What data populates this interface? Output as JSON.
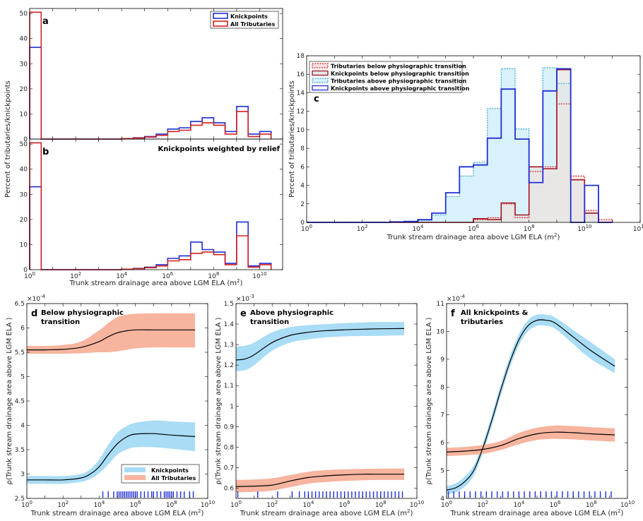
{
  "colors": {
    "blue": "#1f2fd6",
    "red": "#d42020",
    "darkred": "#a0141e",
    "lightblue": "#3aa6d8",
    "bluefill": "#d8f1fb",
    "redfill": "#fbe2e2",
    "greyfill": "#e6e6e6",
    "band_blue": "#a9dcf5",
    "band_orange": "#f7b49e"
  },
  "chart_data": [
    {
      "panel": "a",
      "type": "histogram",
      "xscale": "log",
      "xlim_exp": [
        0,
        11
      ],
      "ylim": [
        0,
        52
      ],
      "yticks": [
        0,
        10,
        20,
        30,
        40,
        50
      ],
      "bin_edges_exp": [
        0,
        0.5,
        1,
        1.5,
        2,
        2.5,
        3,
        3.5,
        4,
        4.5,
        5,
        5.5,
        6,
        6.5,
        7,
        7.5,
        8,
        8.5,
        9,
        9.5,
        10,
        10.5
      ],
      "series": [
        {
          "name": "Knickpoints",
          "values": [
            36.5,
            0,
            0,
            0,
            0,
            0,
            0,
            0,
            0.2,
            0.5,
            1,
            2,
            4,
            4.5,
            7,
            8.5,
            6.5,
            3,
            13,
            2,
            3
          ]
        },
        {
          "name": "All Tributaries",
          "values": [
            50.5,
            0,
            0,
            0,
            0,
            0,
            0,
            0,
            0.2,
            0.4,
            0.8,
            1.5,
            3,
            3.5,
            5.5,
            6.5,
            5.5,
            2,
            11,
            1,
            2
          ]
        }
      ]
    },
    {
      "panel": "b",
      "type": "histogram",
      "annotation": "Knickpoints weighted by relief",
      "xscale": "log",
      "xlim_exp": [
        0,
        11
      ],
      "ylim": [
        0,
        52
      ],
      "yticks": [
        0,
        10,
        20,
        30,
        40,
        50
      ],
      "xlabel": "Trunk stream drainage area above LGM ELA (m",
      "xlabel_sup": "2",
      "bin_edges_exp": [
        0,
        0.5,
        1,
        1.5,
        2,
        2.5,
        3,
        3.5,
        4,
        4.5,
        5,
        5.5,
        6,
        6.5,
        7,
        7.5,
        8,
        8.5,
        9,
        9.5,
        10,
        10.5
      ],
      "series": [
        {
          "name": "Knickpoints",
          "values": [
            33,
            0,
            0,
            0,
            0,
            0,
            0,
            0,
            0.2,
            0.5,
            1,
            2,
            4.5,
            5.5,
            11,
            8,
            7,
            2.5,
            19,
            1.5,
            2.5
          ]
        },
        {
          "name": "All Tributaries",
          "values": [
            50.5,
            0,
            0,
            0,
            0,
            0,
            0,
            0,
            0.2,
            0.4,
            0.8,
            1.5,
            3.5,
            4,
            6.5,
            7,
            6,
            2,
            13.5,
            1,
            2
          ]
        }
      ]
    },
    {
      "panel": "c",
      "type": "histogram",
      "xscale": "log",
      "xlim_exp": [
        0,
        12
      ],
      "ylim": [
        0,
        18
      ],
      "yticks": [
        0,
        2,
        4,
        6,
        8,
        10,
        12,
        14,
        16,
        18
      ],
      "xlabel": "Trunk stream drainage area above LGM ELA (m",
      "xlabel_sup": "2",
      "bin_edges_exp": [
        0,
        0.5,
        1,
        1.5,
        2,
        2.5,
        3,
        3.5,
        4,
        4.5,
        5,
        5.5,
        6,
        6.5,
        7,
        7.5,
        8,
        8.5,
        9,
        9.5,
        10,
        10.5,
        11
      ],
      "series": [
        {
          "name": "Tributaries below physiographic transition",
          "values": [
            0,
            0,
            0,
            0,
            0,
            0,
            0,
            0,
            0,
            0,
            0,
            0,
            0.3,
            0.5,
            2,
            0.5,
            5.5,
            6,
            12.8,
            5,
            1.3,
            0.3
          ]
        },
        {
          "name": "Knickpoints below physiographic transition",
          "values": [
            0,
            0,
            0,
            0,
            0,
            0,
            0,
            0,
            0,
            0,
            0,
            0,
            0.4,
            0.3,
            2.1,
            0.8,
            6,
            5.8,
            16.5,
            4.6,
            1,
            0
          ]
        },
        {
          "name": "Tributaries above  physiographic transition",
          "values": [
            0,
            0,
            0,
            0,
            0,
            0,
            0.05,
            0.1,
            0.2,
            0.8,
            2.8,
            5,
            6.5,
            12.3,
            16.6,
            10.1,
            6,
            16.7,
            15,
            0,
            0,
            0
          ]
        },
        {
          "name": "Knickpoints above physiographic transition",
          "values": [
            0,
            0,
            0,
            0,
            0,
            0,
            0.05,
            0.1,
            0.3,
            1,
            3.2,
            6,
            6.2,
            9.1,
            14.4,
            9,
            4.3,
            14.2,
            16.6,
            0,
            4,
            0
          ]
        }
      ]
    },
    {
      "panel": "d",
      "type": "line",
      "title_lines": [
        "Below physiographic",
        "transition"
      ],
      "xscale": "log",
      "xlim_exp": [
        0,
        10
      ],
      "ylim": [
        2.5,
        6.5
      ],
      "yticks": [
        2.5,
        3,
        3.5,
        4,
        4.5,
        5,
        5.5,
        6,
        6.5
      ],
      "multiplier": "×10",
      "multiplier_exp": "-4",
      "xlabel": "Trunk stream drainage area above LGM ELA (m",
      "xlabel_sup": "2",
      "ylabel": "ρ(Trunk stream drainage area above LGM ELA )",
      "series": [
        {
          "name": "Knickpoints",
          "x_exp": [
            0,
            1,
            2,
            3,
            3.5,
            4,
            4.5,
            5,
            5.5,
            6,
            7,
            8,
            9.3
          ],
          "mean": [
            2.88,
            2.88,
            2.88,
            2.92,
            3.0,
            3.15,
            3.4,
            3.62,
            3.76,
            3.82,
            3.83,
            3.8,
            3.77
          ],
          "lo": [
            2.8,
            2.8,
            2.8,
            2.84,
            2.9,
            3.02,
            3.2,
            3.4,
            3.5,
            3.55,
            3.55,
            3.52,
            3.47
          ],
          "hi": [
            2.96,
            2.96,
            2.96,
            3.0,
            3.1,
            3.3,
            3.6,
            3.85,
            3.98,
            4.05,
            4.1,
            4.08,
            4.06
          ]
        },
        {
          "name": "All Tributaries",
          "x_exp": [
            0,
            1,
            2,
            3,
            4,
            4.5,
            5,
            5.5,
            6,
            7,
            8,
            9.3
          ],
          "mean": [
            5.55,
            5.55,
            5.56,
            5.6,
            5.72,
            5.82,
            5.9,
            5.94,
            5.96,
            5.96,
            5.96,
            5.96
          ],
          "lo": [
            5.47,
            5.47,
            5.47,
            5.48,
            5.5,
            5.5,
            5.52,
            5.55,
            5.58,
            5.6,
            5.6,
            5.6
          ],
          "hi": [
            5.63,
            5.63,
            5.65,
            5.72,
            5.95,
            6.1,
            6.22,
            6.27,
            6.29,
            6.3,
            6.3,
            6.3
          ]
        }
      ],
      "rug_x_exp": [
        4.2,
        4.5,
        4.8,
        5.0,
        5.1,
        5.2,
        5.3,
        5.4,
        5.5,
        5.6,
        5.7,
        5.8,
        5.9,
        6.0,
        6.1,
        6.3,
        6.5,
        6.7,
        6.9,
        7.0,
        7.2,
        7.4,
        7.6,
        7.7,
        7.8,
        7.9,
        8.0,
        8.1,
        8.3,
        8.5,
        8.7,
        9.0,
        9.2
      ],
      "legend": [
        "Knickpoints",
        "All Tributaries"
      ]
    },
    {
      "panel": "e",
      "type": "line",
      "title_lines": [
        "Above physiographic",
        "transition"
      ],
      "xscale": "log",
      "xlim_exp": [
        0,
        10
      ],
      "ylim": [
        0.55,
        1.5
      ],
      "yticks": [
        0.6,
        0.7,
        0.8,
        0.9,
        1,
        1.1,
        1.2,
        1.3,
        1.4,
        1.5
      ],
      "multiplier": "×10",
      "multiplier_exp": "-3",
      "xlabel": "Trunk stream drainage area above LGM ELA (m",
      "xlabel_sup": "2",
      "ylabel": "ρ(Trunk stream drainage area above LGM ELA )",
      "series": [
        {
          "name": "Knickpoints",
          "x_exp": [
            0,
            0.5,
            1,
            2,
            3,
            4,
            5,
            6,
            7,
            8,
            9.3
          ],
          "mean": [
            1.225,
            1.23,
            1.25,
            1.31,
            1.345,
            1.36,
            1.368,
            1.372,
            1.375,
            1.377,
            1.378
          ],
          "lo": [
            1.17,
            1.175,
            1.2,
            1.27,
            1.31,
            1.325,
            1.335,
            1.34,
            1.342,
            1.343,
            1.345
          ],
          "hi": [
            1.29,
            1.295,
            1.31,
            1.36,
            1.385,
            1.395,
            1.4,
            1.405,
            1.408,
            1.41,
            1.41
          ]
        },
        {
          "name": "All Tributaries",
          "x_exp": [
            0,
            1,
            2,
            3,
            4,
            5,
            6,
            7,
            8,
            9.3
          ],
          "mean": [
            0.608,
            0.61,
            0.615,
            0.635,
            0.652,
            0.66,
            0.665,
            0.668,
            0.668,
            0.668
          ],
          "lo": [
            0.58,
            0.582,
            0.588,
            0.605,
            0.622,
            0.63,
            0.635,
            0.638,
            0.64,
            0.64
          ],
          "hi": [
            0.64,
            0.642,
            0.648,
            0.664,
            0.68,
            0.688,
            0.692,
            0.694,
            0.695,
            0.696
          ]
        }
      ],
      "rug_x_exp": [
        0.1,
        1.2,
        2.3,
        3.1,
        3.5,
        3.8,
        4.0,
        4.2,
        4.4,
        4.6,
        4.8,
        5.0,
        5.2,
        5.4,
        5.6,
        5.8,
        6.0,
        6.2,
        6.4,
        6.6,
        6.8,
        7.0,
        7.2,
        7.4,
        7.6,
        7.8,
        8.0,
        8.2,
        8.4,
        8.6,
        8.8,
        9.0,
        9.2
      ]
    },
    {
      "panel": "f",
      "type": "line",
      "title_lines": [
        "All knickpoints &",
        "tributaries"
      ],
      "xscale": "log",
      "xlim_exp": [
        0,
        10
      ],
      "ylim": [
        4,
        11
      ],
      "yticks": [
        4,
        5,
        6,
        7,
        8,
        9,
        10,
        11
      ],
      "multiplier": "×10",
      "multiplier_exp": "-4",
      "xlabel": "Trunk stream drainage area above LGM ELA (m",
      "xlabel_sup": "2",
      "ylabel": "ρ(Trunk stream drainage area above LGM ELA )",
      "series": [
        {
          "name": "Knickpoints",
          "x_exp": [
            0,
            0.5,
            1,
            1.5,
            2,
            2.5,
            3,
            3.5,
            4,
            4.5,
            5,
            5.5,
            6,
            7,
            8,
            9.3
          ],
          "mean": [
            4.3,
            4.38,
            4.6,
            5.0,
            5.8,
            6.8,
            7.9,
            8.9,
            9.7,
            10.2,
            10.4,
            10.4,
            10.3,
            9.8,
            9.3,
            8.75
          ],
          "lo": [
            4.15,
            4.22,
            4.42,
            4.82,
            5.62,
            6.6,
            7.7,
            8.7,
            9.5,
            10.0,
            10.2,
            10.2,
            10.1,
            9.55,
            9.0,
            8.5
          ],
          "hi": [
            4.45,
            4.54,
            4.78,
            5.18,
            5.98,
            7.0,
            8.1,
            9.1,
            9.9,
            10.4,
            10.6,
            10.6,
            10.5,
            10.05,
            9.6,
            9.0
          ]
        },
        {
          "name": "All Tributaries",
          "x_exp": [
            0,
            1,
            2,
            3,
            4,
            5,
            6,
            7,
            8,
            9.3
          ],
          "mean": [
            5.67,
            5.7,
            5.76,
            5.9,
            6.15,
            6.32,
            6.38,
            6.36,
            6.32,
            6.28
          ],
          "lo": [
            5.52,
            5.55,
            5.6,
            5.74,
            5.95,
            6.1,
            6.14,
            6.12,
            6.08,
            6.04
          ],
          "hi": [
            5.82,
            5.85,
            5.92,
            6.06,
            6.35,
            6.54,
            6.62,
            6.6,
            6.56,
            6.52
          ]
        }
      ],
      "rug_x_exp": [
        0.1,
        0.4,
        0.7,
        1.0,
        1.3,
        1.6,
        1.9,
        2.2,
        2.5,
        2.8,
        3.1,
        3.4,
        3.7,
        4.0,
        4.3,
        4.6,
        4.9,
        5.2,
        5.5,
        5.8,
        6.1,
        6.4,
        6.7,
        7.0,
        7.3,
        7.6,
        7.9,
        8.2,
        8.5,
        8.8,
        9.1
      ]
    }
  ],
  "axis_common": {
    "base": "10",
    "ylabel_ab": "Percent of tributaries/knickpoints",
    "ylabel_c": "Percent of tributaries/knickpoints"
  }
}
